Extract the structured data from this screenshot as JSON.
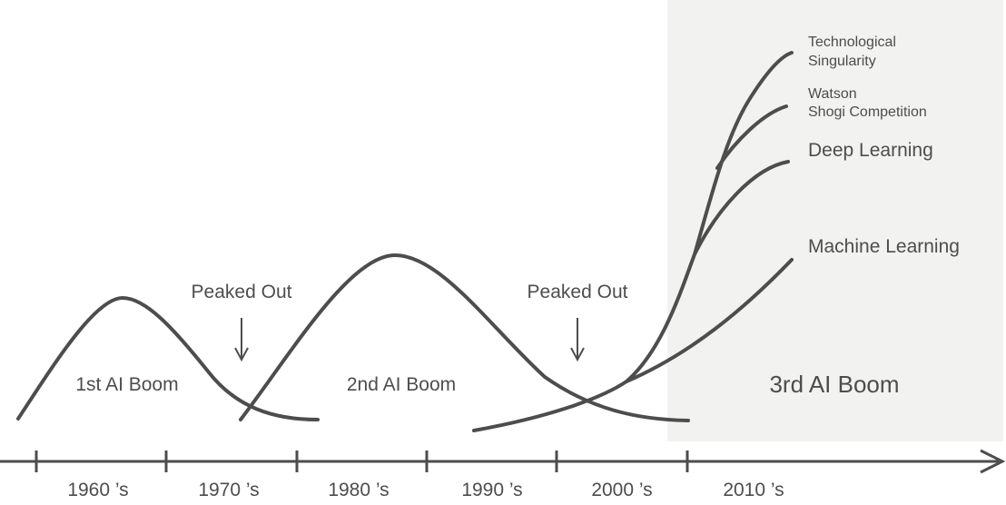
{
  "booms": {
    "first": "1st AI Boom",
    "second": "2nd AI Boom",
    "third": "3rd AI Boom"
  },
  "peaks": {
    "first": "Peaked Out",
    "second": "Peaked Out"
  },
  "decades": [
    "1960 ’s",
    "1970 ’s",
    "1980 ’s",
    "1990 ’s",
    "2000 ’s",
    "2010 ’s"
  ],
  "branches": {
    "singularity": [
      "Technological",
      "Singularity"
    ],
    "watson": [
      "Watson",
      "Shogi Competition"
    ],
    "deep": "Deep Learning",
    "ml": "Machine Learning"
  },
  "colors": {
    "line": "#4d4d4d",
    "highlight_panel": "#f2f2f0"
  }
}
